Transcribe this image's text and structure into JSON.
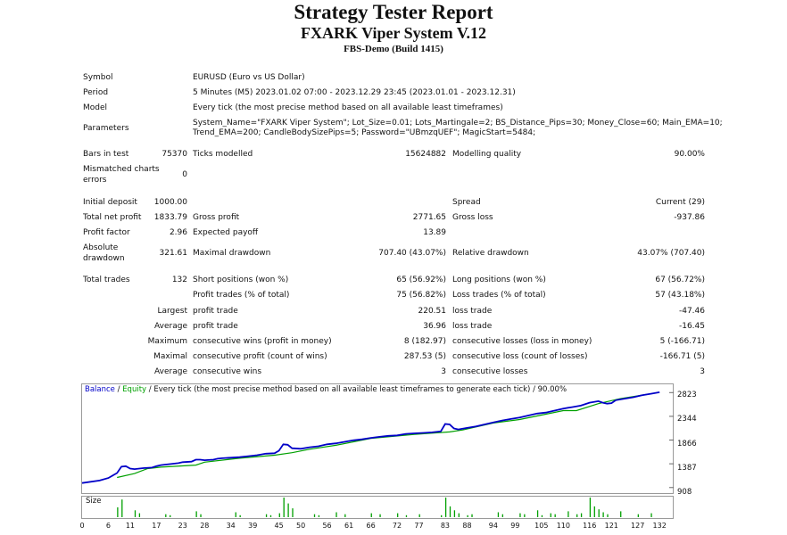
{
  "header": {
    "title": "Strategy Tester Report",
    "subtitle": "FXARK Viper System V.12",
    "server": "FBS-Demo (Build 1415)"
  },
  "info": {
    "symbol_label": "Symbol",
    "symbol_value": "EURUSD (Euro vs US Dollar)",
    "period_label": "Period",
    "period_value": "5 Minutes (M5) 2023.01.02 07:00 - 2023.12.29 23:45 (2023.01.01 - 2023.12.31)",
    "model_label": "Model",
    "model_value": "Every tick (the most precise method based on all available least timeframes)",
    "parameters_label": "Parameters",
    "parameters_line1": "System_Name=\"FXARK Viper System\"; Lot_Size=0.01; Lots_Martingale=2; BS_Distance_Pips=30; Money_Close=60; Main_EMA=10;",
    "parameters_line2": "Trend_EMA=200; CandleBodySizePips=5; Password=\"UBmzqUEF\"; MagicStart=5484;"
  },
  "stats": {
    "bars_label": "Bars in test",
    "bars_value": "75370",
    "ticks_label": "Ticks modelled",
    "ticks_value": "15624882",
    "quality_label": "Modelling quality",
    "quality_value": "90.00%",
    "mismatch_label_1": "Mismatched charts",
    "mismatch_label_2": "errors",
    "mismatch_value": "0",
    "deposit_label": "Initial deposit",
    "deposit_value": "1000.00",
    "spread_label": "Spread",
    "spread_value": "Current (29)",
    "netprofit_label": "Total net profit",
    "netprofit_value": "1833.79",
    "grossprofit_label": "Gross profit",
    "grossprofit_value": "2771.65",
    "grossloss_label": "Gross loss",
    "grossloss_value": "-937.86",
    "pf_label": "Profit factor",
    "pf_value": "2.96",
    "payoff_label": "Expected payoff",
    "payoff_value": "13.89",
    "absdd_label_1": "Absolute",
    "absdd_label_2": "drawdown",
    "absdd_value": "321.61",
    "maxdd_label": "Maximal drawdown",
    "maxdd_value": "707.40 (43.07%)",
    "reldd_label": "Relative drawdown",
    "reldd_value": "43.07% (707.40)",
    "trades_label": "Total trades",
    "trades_value": "132",
    "short_label": "Short positions (won %)",
    "short_value": "65 (56.92%)",
    "long_label": "Long positions (won %)",
    "long_value": "67 (56.72%)",
    "profit_trades_label": "Profit trades (% of total)",
    "profit_trades_value": "75 (56.82%)",
    "loss_trades_label": "Loss trades (% of total)",
    "loss_trades_value": "57 (43.18%)",
    "largest_label": "Largest",
    "largest_profit_label": "profit trade",
    "largest_profit_value": "220.51",
    "largest_loss_label": "loss trade",
    "largest_loss_value": "-47.46",
    "average_label": "Average",
    "average_profit_label": "profit trade",
    "average_profit_value": "36.96",
    "average_loss_label": "loss trade",
    "average_loss_value": "-16.45",
    "maximum_label": "Maximum",
    "max_wins_label": "consecutive wins (profit in money)",
    "max_wins_value": "8 (182.97)",
    "max_losses_label": "consecutive losses (loss in money)",
    "max_losses_value": "5 (-166.71)",
    "maximal_label": "Maximal",
    "maximal_profit_label": "consecutive profit (count of wins)",
    "maximal_profit_value": "287.53 (5)",
    "maximal_loss_label": "consecutive loss (count of losses)",
    "maximal_loss_value": "-166.71 (5)",
    "avg2_label": "Average",
    "avg_wins_label": "consecutive wins",
    "avg_wins_value": "3",
    "avg_losses_label": "consecutive losses",
    "avg_losses_value": "3"
  },
  "chart_data": {
    "type": "line",
    "legend": {
      "balance": "Balance",
      "sep": " / ",
      "equity": "Equity",
      "note": " / Every tick (the most precise method based on all available least timeframes to generate each tick)  / 90.00%"
    },
    "colors": {
      "balance": "#0000c8",
      "equity": "#00a000",
      "size": "#00a000",
      "axis": "#000000"
    },
    "ylim": [
      850,
      2900
    ],
    "y_ticks": [
      "2823",
      "2344",
      "1866",
      "1387",
      "908"
    ],
    "x_ticks": [
      "0",
      "6",
      "11",
      "17",
      "23",
      "28",
      "34",
      "39",
      "45",
      "50",
      "56",
      "61",
      "66",
      "72",
      "77",
      "83",
      "88",
      "94",
      "99",
      "105",
      "110",
      "116",
      "121",
      "127",
      "132"
    ],
    "xlim": [
      0,
      134
    ],
    "series": [
      {
        "name": "Balance",
        "x": [
          0,
          4,
          6,
          8,
          9,
          10,
          11,
          12,
          14,
          16,
          17,
          18,
          20,
          22,
          23,
          25,
          26,
          27,
          28,
          30,
          31,
          32,
          34,
          36,
          38,
          40,
          42,
          44,
          45,
          46,
          47,
          48,
          50,
          52,
          54,
          56,
          58,
          60,
          62,
          64,
          66,
          68,
          70,
          72,
          74,
          76,
          78,
          80,
          82,
          83,
          84,
          85,
          86,
          88,
          90,
          92,
          94,
          96,
          98,
          100,
          102,
          104,
          106,
          108,
          110,
          112,
          114,
          116,
          118,
          119,
          120,
          121,
          122,
          124,
          126,
          128,
          130,
          132
        ],
        "y": [
          1000,
          1050,
          1100,
          1200,
          1330,
          1340,
          1290,
          1280,
          1300,
          1310,
          1340,
          1360,
          1380,
          1400,
          1420,
          1430,
          1470,
          1470,
          1460,
          1470,
          1490,
          1500,
          1510,
          1520,
          1540,
          1560,
          1590,
          1600,
          1650,
          1780,
          1770,
          1700,
          1690,
          1720,
          1740,
          1780,
          1800,
          1830,
          1860,
          1880,
          1910,
          1930,
          1950,
          1960,
          1990,
          2000,
          2010,
          2020,
          2040,
          2190,
          2180,
          2100,
          2080,
          2110,
          2140,
          2180,
          2220,
          2260,
          2290,
          2320,
          2360,
          2400,
          2420,
          2460,
          2500,
          2530,
          2560,
          2620,
          2650,
          2620,
          2600,
          2610,
          2670,
          2700,
          2730,
          2770,
          2800,
          2830
        ]
      },
      {
        "name": "Equity",
        "x": [
          8,
          12,
          15,
          18,
          26,
          28,
          36,
          44,
          48,
          52,
          58,
          66,
          76,
          84,
          87,
          94,
          100,
          110,
          113,
          118,
          123,
          130
        ],
        "y": [
          1110,
          1190,
          1290,
          1320,
          1360,
          1420,
          1500,
          1560,
          1610,
          1680,
          1760,
          1900,
          1980,
          2030,
          2070,
          2210,
          2280,
          2460,
          2460,
          2600,
          2700,
          2800
        ]
      }
    ],
    "size_bars": {
      "name": "Size",
      "x": [
        8,
        9,
        12,
        13,
        19,
        20,
        26,
        27,
        35,
        36,
        42,
        43,
        45,
        46,
        47,
        48,
        53,
        54,
        58,
        60,
        66,
        68,
        72,
        74,
        77,
        82,
        83,
        84,
        85,
        86,
        88,
        89,
        95,
        96,
        100,
        101,
        104,
        105,
        107,
        108,
        111,
        113,
        114,
        116,
        117,
        118,
        119,
        120,
        123,
        127,
        130
      ],
      "v": [
        0.5,
        0.9,
        0.35,
        0.2,
        0.15,
        0.1,
        0.3,
        0.15,
        0.25,
        0.1,
        0.15,
        0.1,
        0.2,
        1.0,
        0.7,
        0.45,
        0.15,
        0.1,
        0.25,
        0.15,
        0.2,
        0.15,
        0.2,
        0.1,
        0.15,
        0.1,
        1.0,
        0.55,
        0.35,
        0.2,
        0.1,
        0.15,
        0.25,
        0.15,
        0.2,
        0.15,
        0.35,
        0.1,
        0.2,
        0.15,
        0.3,
        0.15,
        0.2,
        1.0,
        0.55,
        0.4,
        0.25,
        0.15,
        0.3,
        0.15,
        0.2
      ]
    }
  }
}
